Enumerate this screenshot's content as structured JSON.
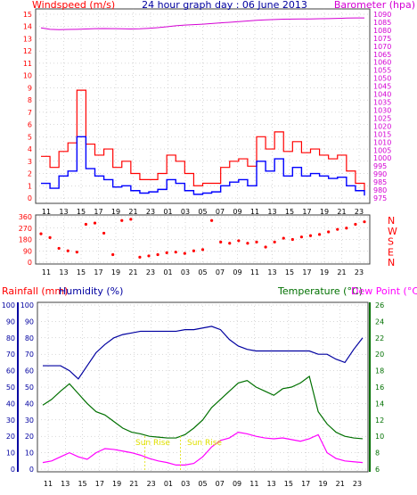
{
  "colors": {
    "wind": "#ff0000",
    "gust_line": "#ff0000",
    "avg_wind": "#0000ff",
    "barometer": "#d400d4",
    "direction": "#ff0000",
    "rainfall": "#ff0000",
    "humidity": "#0000a0",
    "temperature": "#007000",
    "dewpoint": "#ff00ff",
    "frame": "#404040",
    "grid": "#b0b0b0",
    "note": "#e0e000"
  },
  "chart_data": [
    {
      "type": "line",
      "title": "24 hour graph day : 06 June 2013",
      "ylabel": "Windspeed (m/s)",
      "y2label": "Barometer (hpa)",
      "x_tick_labels": [
        "11",
        "13",
        "15",
        "17",
        "19",
        "21",
        "23",
        "01",
        "03",
        "05",
        "07",
        "09",
        "11",
        "13",
        "15",
        "17",
        "19",
        "21",
        "23"
      ],
      "ylim": [
        0,
        15
      ],
      "y_ticks": [
        0,
        1,
        2,
        3,
        4,
        5,
        6,
        7,
        8,
        9,
        10,
        11,
        12,
        13,
        14,
        15
      ],
      "y2lim": [
        975,
        1090
      ],
      "y2_ticks": [
        975,
        980,
        985,
        990,
        995,
        1000,
        1005,
        1010,
        1015,
        1020,
        1025,
        1030,
        1035,
        1040,
        1045,
        1050,
        1055,
        1060,
        1065,
        1070,
        1075,
        1080,
        1085,
        1090
      ],
      "x": [
        0,
        1,
        2,
        3,
        4,
        5,
        6,
        7,
        8,
        9,
        10,
        11,
        12,
        13,
        14,
        15,
        16,
        17,
        18,
        19,
        20,
        21,
        22,
        23,
        24,
        25,
        26,
        27,
        28,
        29,
        30,
        31,
        32,
        33,
        34,
        35,
        36
      ],
      "series": [
        {
          "name": "gust",
          "values": [
            3.4,
            2.5,
            3.8,
            4.5,
            8.8,
            4.4,
            3.5,
            4.0,
            2.5,
            3.0,
            2.0,
            1.5,
            1.5,
            2.0,
            3.5,
            3.0,
            2.0,
            1.0,
            1.2,
            1.2,
            2.5,
            3.0,
            3.2,
            2.6,
            5.0,
            4.0,
            5.4,
            3.8,
            4.6,
            3.7,
            4.0,
            3.5,
            3.2,
            3.5,
            2.2,
            1.2,
            0.6
          ]
        },
        {
          "name": "avg",
          "values": [
            1.2,
            0.8,
            1.8,
            2.2,
            5.0,
            2.4,
            1.8,
            1.5,
            0.9,
            1.0,
            0.6,
            0.4,
            0.5,
            0.7,
            1.5,
            1.2,
            0.6,
            0.3,
            0.4,
            0.5,
            1.0,
            1.3,
            1.5,
            1.0,
            3.0,
            2.2,
            3.2,
            1.8,
            2.5,
            1.8,
            2.0,
            1.8,
            1.6,
            1.7,
            1.0,
            0.6,
            0.2
          ]
        },
        {
          "name": "barometer",
          "values": [
            1081.5,
            1080.6,
            1080.4,
            1080.5,
            1080.6,
            1080.8,
            1081.0,
            1081.1,
            1081.0,
            1080.9,
            1080.8,
            1080.9,
            1081.2,
            1081.6,
            1082.2,
            1082.8,
            1083.2,
            1083.5,
            1083.8,
            1084.2,
            1084.6,
            1085.0,
            1085.4,
            1085.8,
            1086.2,
            1086.5,
            1086.7,
            1086.9,
            1087.0,
            1087.1,
            1087.1,
            1087.2,
            1087.3,
            1087.4,
            1087.6,
            1087.7,
            1087.7
          ]
        }
      ]
    },
    {
      "type": "scatter",
      "name": "wind-direction",
      "ylim": [
        0,
        360
      ],
      "y_ticks": [
        0,
        90,
        180,
        270,
        360
      ],
      "right_labels": [
        "N",
        "W",
        "S",
        "E",
        "N"
      ],
      "x_tick_labels": [
        "11",
        "13",
        "15",
        "17",
        "19",
        "21",
        "23",
        "01",
        "03",
        "05",
        "07",
        "09",
        "11",
        "13",
        "15",
        "17",
        "19",
        "21",
        "23"
      ],
      "x": [
        0,
        1,
        2,
        3,
        4,
        5,
        6,
        7,
        8,
        9,
        10,
        11,
        12,
        13,
        14,
        15,
        16,
        17,
        18,
        19,
        20,
        21,
        22,
        23,
        24,
        25,
        26,
        27,
        28,
        29,
        30,
        31,
        32,
        33,
        34,
        35,
        36
      ],
      "values": [
        225,
        195,
        110,
        90,
        80,
        300,
        310,
        230,
        60,
        330,
        340,
        40,
        50,
        60,
        75,
        80,
        70,
        90,
        100,
        330,
        160,
        150,
        170,
        150,
        160,
        120,
        160,
        190,
        180,
        200,
        210,
        220,
        240,
        260,
        270,
        300,
        320
      ]
    },
    {
      "type": "line",
      "ylabel": "Rainfall (mm)",
      "ylabel2": "Humidity (%)",
      "y2label": "Temperature (°C)",
      "y3label": "Dew Point (°C)",
      "x_tick_labels": [
        "11",
        "13",
        "15",
        "17",
        "19",
        "21",
        "23",
        "01",
        "03",
        "05",
        "07",
        "09",
        "11",
        "13",
        "15",
        "17",
        "19",
        "21",
        "23"
      ],
      "ylim": [
        0,
        100
      ],
      "y_ticks": [
        0,
        10,
        20,
        30,
        40,
        50,
        60,
        70,
        80,
        90,
        100
      ],
      "y2lim": [
        6,
        26
      ],
      "y2_ticks": [
        6,
        8,
        10,
        12,
        14,
        16,
        18,
        20,
        22,
        24,
        26
      ],
      "annotations": [
        "Sun Rise",
        "Sun Rise"
      ],
      "x": [
        0,
        1,
        2,
        3,
        4,
        5,
        6,
        7,
        8,
        9,
        10,
        11,
        12,
        13,
        14,
        15,
        16,
        17,
        18,
        19,
        20,
        21,
        22,
        23,
        24,
        25,
        26,
        27,
        28,
        29,
        30,
        31,
        32,
        33,
        34,
        35,
        36
      ],
      "series": [
        {
          "name": "Humidity",
          "values": [
            63,
            63,
            63,
            60,
            55,
            63,
            71,
            76,
            80,
            82,
            83,
            84,
            84,
            84,
            84,
            84,
            85,
            85,
            86,
            87,
            85,
            79,
            75,
            73,
            72,
            72,
            72,
            72,
            72,
            72,
            72,
            70,
            70,
            67,
            65,
            73,
            80
          ]
        },
        {
          "name": "Temperature",
          "values": [
            13.8,
            14.5,
            15.5,
            16.4,
            15.2,
            14.0,
            13.0,
            12.6,
            11.8,
            11.0,
            10.5,
            10.3,
            10.0,
            9.9,
            9.8,
            9.8,
            10.2,
            11.0,
            12.0,
            13.5,
            14.5,
            15.5,
            16.5,
            16.8,
            16.0,
            15.5,
            15.0,
            15.8,
            16.0,
            16.5,
            17.3,
            13.0,
            11.5,
            10.5,
            10.0,
            9.8,
            9.7
          ]
        },
        {
          "name": "Dew Point",
          "values": [
            6.8,
            7.0,
            7.5,
            8.0,
            7.5,
            7.2,
            8.0,
            8.5,
            8.4,
            8.2,
            8.0,
            7.7,
            7.3,
            7.0,
            6.8,
            6.5,
            6.5,
            6.7,
            7.5,
            8.7,
            9.5,
            9.8,
            10.5,
            10.3,
            10.0,
            9.8,
            9.7,
            9.8,
            9.6,
            9.4,
            9.7,
            10.2,
            8.0,
            7.3,
            7.0,
            6.9,
            6.8
          ]
        }
      ]
    }
  ]
}
